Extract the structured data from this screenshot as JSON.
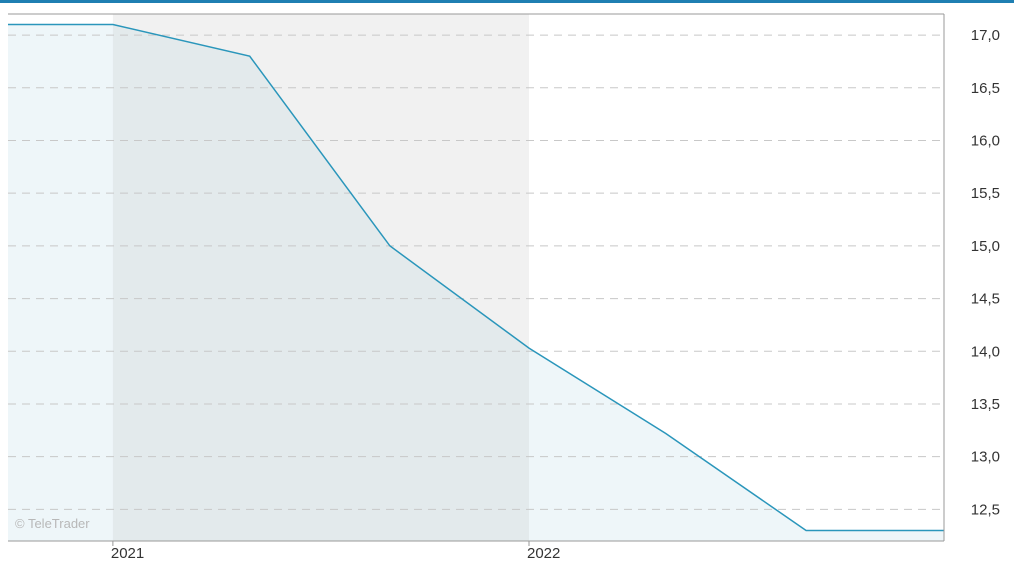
{
  "colors": {
    "top_border": "#1f7fb2",
    "line": "#2a96bb",
    "area_fill": "#eef6f9",
    "shaded_band": "#f1f1f1",
    "shaded_area_fill": "#e3eaec",
    "grid": "#c8c8c8",
    "frame": "#999999",
    "tick_text": "#333333",
    "watermark": "#b8b8b8"
  },
  "watermark": "© TeleTrader",
  "chart_data": {
    "type": "area",
    "title": "",
    "xlabel": "",
    "ylabel": "",
    "y_axis_position": "right",
    "grid": true,
    "ylim": [
      12.2,
      17.2
    ],
    "y_ticks": [
      17.0,
      16.5,
      16.0,
      15.5,
      15.0,
      14.5,
      14.0,
      13.5,
      13.0,
      12.5
    ],
    "y_tick_labels": [
      "17,0",
      "16,5",
      "16,0",
      "15,5",
      "15,0",
      "14,5",
      "14,0",
      "13,5",
      "13,0",
      "12,5"
    ],
    "xlim": [
      "2020-10-01",
      "2022-12-31"
    ],
    "x_ticks": [
      "2021-01-01",
      "2022-01-01"
    ],
    "x_tick_labels": [
      "2021",
      "2022"
    ],
    "shaded_period": [
      "2021-01-01",
      "2022-01-01"
    ],
    "series": [
      {
        "x": [
          "2020-10-01",
          "2021-01-01",
          "2021-05-01",
          "2021-09-01",
          "2022-01-01",
          "2022-05-01",
          "2022-09-01",
          "2022-12-31"
        ],
        "values": [
          17.1,
          17.1,
          16.8,
          15.0,
          14.03,
          13.22,
          12.3,
          12.3
        ]
      }
    ]
  }
}
